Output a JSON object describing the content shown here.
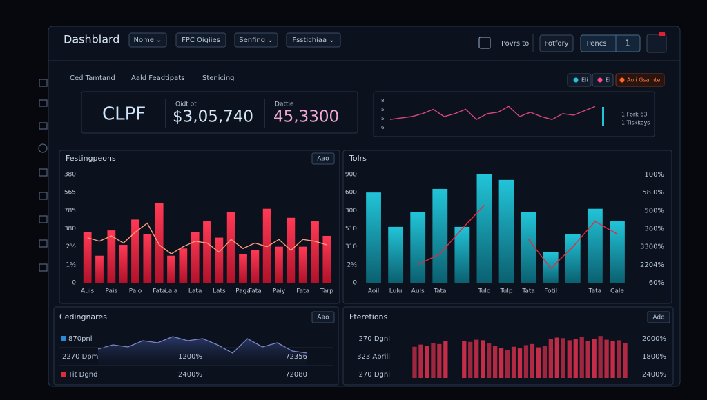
{
  "header": {
    "title": "Dashblard",
    "menus": [
      "Nome ⌄",
      "FPC Oigiies",
      "Senfing ⌄",
      "Fsstichiaa ⌄"
    ],
    "link": "Povrs to",
    "button": "Fotfory",
    "pages_label": "Pencs",
    "pages_count": "1"
  },
  "breadcrumbs": [
    "Ced Tamtand",
    "Aald Feadtipats",
    "Stenicing"
  ],
  "legend": [
    "Eli",
    "Ei",
    "Aoli Gsamte"
  ],
  "kpi": {
    "name": "CLPF",
    "metric1_label": "Oidt ot",
    "metric1_value": "$3,05,740",
    "metric2_label": "Dattie",
    "metric2_value": "45,3300"
  },
  "chart_data": [
    {
      "type": "line",
      "y_labels": [
        "8",
        "5",
        "5",
        "6"
      ],
      "notes": [
        "1 Fork 63",
        "1 Tiskkeys"
      ],
      "ylim": [
        0,
        10
      ],
      "color": "#d9487a",
      "values": [
        4,
        4.5,
        5,
        6,
        7.5,
        5,
        6,
        7.5,
        4,
        6,
        6.5,
        8.5,
        5,
        6.5,
        5,
        4,
        6,
        5.5,
        7,
        8.5
      ]
    },
    {
      "type": "bar",
      "title": "Festingpeons",
      "button": "Aao",
      "ylim": [
        0,
        6
      ],
      "yticks": [
        {
          "value": 0,
          "label": "0"
        },
        {
          "value": 1,
          "label": "1½"
        },
        {
          "value": 2,
          "label": "2½"
        },
        {
          "value": 3,
          "label": "380"
        },
        {
          "value": 4,
          "label": "785"
        },
        {
          "value": 5,
          "label": "565"
        },
        {
          "value": 6,
          "label": "380"
        }
      ],
      "categories": [
        "Auis",
        null,
        "Pais",
        null,
        "Paio",
        null,
        "Fata",
        "Laia",
        null,
        "Lata",
        null,
        "Lats",
        null,
        "Paga",
        "Fata",
        null,
        "Paiy",
        null,
        "Fata",
        null,
        "Tarp"
      ],
      "series": [
        {
          "color": "#ff2b45",
          "values": [
            2.8,
            1.5,
            2.9,
            2.1,
            3.5,
            2.7,
            4.4,
            1.5,
            1.9,
            2.8,
            3.4,
            2.5,
            3.9,
            1.6,
            1.8,
            4.1,
            2.0,
            3.6,
            2.0,
            3.4,
            2.6
          ]
        },
        {
          "color": "#ff9a7a",
          "values": [
            2.5,
            2.3,
            2.6,
            2.2,
            2.8,
            3.3,
            2.1,
            1.6,
            2.0,
            2.3,
            2.2,
            1.7,
            2.4,
            1.9,
            2.2,
            2.0,
            2.4,
            1.8,
            2.4,
            2.3,
            2.1
          ]
        }
      ]
    },
    {
      "type": "bar",
      "title": "Tolrs",
      "button": "",
      "ylim": [
        0,
        6
      ],
      "y2lim": [
        0,
        6
      ],
      "yticks": [
        {
          "value": 0,
          "label": "0"
        },
        {
          "value": 1,
          "label": "2½"
        },
        {
          "value": 2,
          "label": "310"
        },
        {
          "value": 3,
          "label": "510"
        },
        {
          "value": 4,
          "label": "300"
        },
        {
          "value": 5,
          "label": "600"
        },
        {
          "value": 6,
          "label": "900"
        }
      ],
      "y2ticks": [
        {
          "value": 0,
          "label": "60%"
        },
        {
          "value": 1,
          "label": "2204%"
        },
        {
          "value": 2,
          "label": "3300%"
        },
        {
          "value": 3,
          "label": "360%"
        },
        {
          "value": 4,
          "label": "500%"
        },
        {
          "value": 5,
          "label": "58.0%"
        },
        {
          "value": 6,
          "label": "100%"
        }
      ],
      "categories": [
        "Aoil",
        "Lulu",
        "Auls",
        "Tata",
        null,
        "Tulo",
        "Tulp",
        "Tata",
        "Fotil",
        null,
        "Tata",
        "Cale"
      ],
      "series": [
        {
          "color": "#1aa9bd",
          "values": [
            5.0,
            3.1,
            3.9,
            5.2,
            3.1,
            6.0,
            5.7,
            3.9,
            1.7,
            2.7,
            4.1,
            3.4
          ]
        },
        {
          "color": "#e8283f",
          "axis": "y2",
          "values": [
            null,
            null,
            1.0,
            1.6,
            3.0,
            4.3,
            null,
            2.4,
            0.8,
            2.0,
            3.4,
            2.7
          ]
        }
      ]
    },
    {
      "type": "area",
      "title": "Cedingnares",
      "button": "Aao",
      "ylim": [
        0,
        10
      ],
      "color": "#7a86c8",
      "labels_left": [
        "870pnl",
        "2270 Dpm",
        "Tit Dgnd"
      ],
      "labels_middle": [
        "1200%",
        "2400%"
      ],
      "labels_right": [
        "72356",
        "72080"
      ],
      "values": [
        4,
        5,
        4.5,
        6,
        5.5,
        7,
        6,
        6.5,
        5,
        3,
        6.5,
        4.5,
        5.5,
        3.5,
        3
      ]
    },
    {
      "type": "bar",
      "title": "Fteretions",
      "button": "Ado",
      "ylim": [
        0,
        10
      ],
      "color": "#cf2e4a",
      "labels_left": [
        "270 Dgnl",
        "323 Aprill",
        "270 Dgnl"
      ],
      "labels_right": [
        "2000%",
        "1800%",
        "2400%"
      ],
      "values": [
        5.8,
        6.2,
        6.0,
        6.5,
        6.3,
        6.8,
        null,
        null,
        6.9,
        6.7,
        7.1,
        7.0,
        6.4,
        5.9,
        5.6,
        5.2,
        5.8,
        5.5,
        6.1,
        6.3,
        5.7,
        6.0,
        7.2,
        7.5,
        7.4,
        7.0,
        7.3,
        7.6,
        6.9,
        7.2,
        7.8,
        7.1,
        6.8,
        7.0,
        6.5
      ]
    }
  ]
}
